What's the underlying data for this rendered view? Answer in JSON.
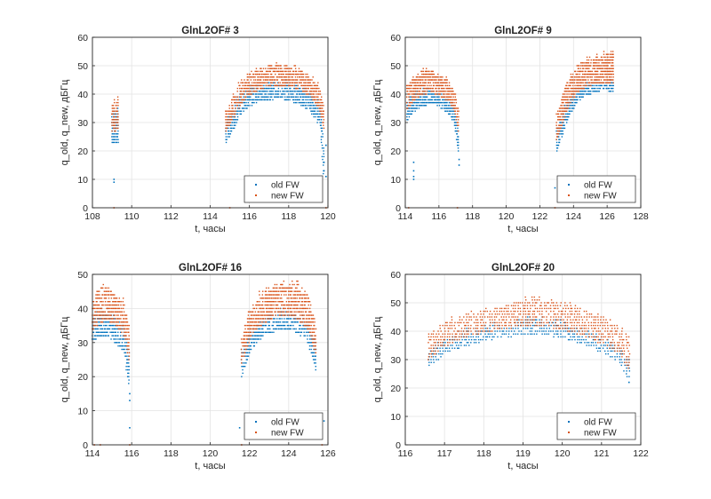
{
  "chart_data": [
    {
      "type": "scatter",
      "title": "GlnL2OF# 3",
      "xlabel": "t, часы",
      "ylabel": "q_old, q_new, дБГц",
      "xlim": [
        108,
        120
      ],
      "ylim": [
        0,
        60
      ],
      "xticks": [
        "108",
        "110",
        "112",
        "114",
        "116",
        "118",
        "120"
      ],
      "yticks": [
        "0",
        "10",
        "20",
        "30",
        "40",
        "50",
        "60"
      ],
      "grid": true,
      "legend": {
        "position": "bottom-right",
        "entries": [
          "old FW",
          "new FW"
        ]
      },
      "series": [
        {
          "name": "old FW",
          "color": "#0072BD",
          "segments": [
            {
              "x": [
                109.0,
                109.3
              ],
              "low": [
                23,
                23
              ],
              "high": [
                33,
                34
              ]
            },
            {
              "x": [
                114.8,
                115.2,
                115.5,
                116.0,
                116.5,
                117.0,
                117.5,
                118.0,
                118.5,
                119.0,
                119.3,
                119.6,
                119.8
              ],
              "low": [
                23,
                28,
                33,
                36,
                38,
                38,
                39,
                38,
                37,
                35,
                32,
                28,
                10
              ],
              "high": [
                30,
                36,
                40,
                42,
                43,
                44,
                44,
                44,
                43,
                41,
                39,
                36,
                22
              ]
            }
          ],
          "outliers": [
            [
              109.1,
              9
            ],
            [
              109.1,
              10
            ],
            [
              119.8,
              13
            ],
            [
              119.8,
              16
            ],
            [
              119.9,
              22
            ],
            [
              119.9,
              11
            ]
          ]
        },
        {
          "name": "new FW",
          "color": "#D95319",
          "segments": [
            {
              "x": [
                109.0,
                109.3
              ],
              "low": [
                27,
                27
              ],
              "high": [
                37,
                38
              ]
            },
            {
              "x": [
                114.8,
                115.2,
                115.5,
                116.0,
                116.5,
                117.0,
                117.5,
                118.0,
                118.5,
                119.0,
                119.3,
                119.6,
                119.8
              ],
              "low": [
                27,
                32,
                36,
                40,
                42,
                43,
                43,
                43,
                42,
                40,
                38,
                34,
                26
              ],
              "high": [
                33,
                40,
                44,
                47,
                49,
                50,
                51,
                50,
                49,
                47,
                45,
                42,
                35
              ]
            }
          ],
          "outliers": [
            [
              109.1,
              0
            ],
            [
              115.0,
              0
            ],
            [
              119.9,
              0
            ]
          ]
        }
      ]
    },
    {
      "type": "scatter",
      "title": "GlnL2OF# 9",
      "xlabel": "t, часы",
      "ylabel": "q_old, q_new, дБГц",
      "xlim": [
        114,
        128
      ],
      "ylim": [
        0,
        60
      ],
      "xticks": [
        "114",
        "116",
        "118",
        "120",
        "122",
        "124",
        "126",
        "128"
      ],
      "yticks": [
        "0",
        "10",
        "20",
        "30",
        "40",
        "50",
        "60"
      ],
      "grid": true,
      "legend": {
        "position": "bottom-right",
        "entries": [
          "old FW",
          "new FW"
        ]
      },
      "series": [
        {
          "name": "old FW",
          "color": "#0072BD",
          "segments": [
            {
              "x": [
                114.1,
                114.5,
                115.0,
                115.5,
                116.0,
                116.5,
                116.9,
                117.2
              ],
              "low": [
                31,
                34,
                36,
                37,
                36,
                34,
                30,
                18
              ],
              "high": [
                37,
                40,
                41,
                41,
                40,
                39,
                36,
                26
              ]
            },
            {
              "x": [
                123.0,
                123.4,
                123.8,
                124.3,
                124.8,
                125.3,
                125.8,
                126.4
              ],
              "low": [
                20,
                27,
                33,
                38,
                40,
                41,
                42,
                41
              ],
              "high": [
                28,
                34,
                39,
                42,
                43,
                44,
                44,
                44
              ]
            }
          ],
          "outliers": [
            [
              114.5,
              10
            ],
            [
              114.5,
              11
            ],
            [
              114.5,
              13
            ],
            [
              114.5,
              16
            ],
            [
              117.2,
              15
            ],
            [
              117.2,
              17
            ],
            [
              122.9,
              7
            ]
          ]
        },
        {
          "name": "new FW",
          "color": "#D95319",
          "segments": [
            {
              "x": [
                114.1,
                114.5,
                115.0,
                115.5,
                116.0,
                116.5,
                116.9,
                117.2
              ],
              "low": [
                35,
                38,
                40,
                41,
                40,
                38,
                35,
                26
              ],
              "high": [
                43,
                46,
                48,
                49,
                47,
                45,
                42,
                33
              ]
            },
            {
              "x": [
                123.0,
                123.4,
                123.8,
                124.3,
                124.8,
                125.3,
                125.8,
                126.4
              ],
              "low": [
                24,
                31,
                37,
                41,
                43,
                44,
                44,
                44
              ],
              "high": [
                32,
                40,
                46,
                50,
                52,
                53,
                54,
                54
              ]
            }
          ],
          "outliers": [
            [
              114.2,
              0
            ],
            [
              117.1,
              0
            ],
            [
              122.9,
              0
            ]
          ]
        }
      ]
    },
    {
      "type": "scatter",
      "title": "GlnL2OF# 16",
      "xlabel": "t, часы",
      "ylabel": "q_old, q_new, дБГц",
      "xlim": [
        114,
        126
      ],
      "ylim": [
        0,
        50
      ],
      "xticks": [
        "114",
        "116",
        "118",
        "120",
        "122",
        "124",
        "126"
      ],
      "yticks": [
        "0",
        "10",
        "20",
        "30",
        "40",
        "50"
      ],
      "grid": true,
      "legend": {
        "position": "bottom-right",
        "entries": [
          "old FW",
          "new FW"
        ]
      },
      "series": [
        {
          "name": "old FW",
          "color": "#0072BD",
          "segments": [
            {
              "x": [
                114.0,
                114.4,
                114.8,
                115.2,
                115.6,
                115.9
              ],
              "low": [
                31,
                32,
                32,
                30,
                28,
                15
              ],
              "high": [
                37,
                39,
                39,
                37,
                35,
                26
              ]
            },
            {
              "x": [
                121.6,
                122.0,
                122.5,
                123.0,
                123.5,
                124.0,
                124.5,
                125.0,
                125.4
              ],
              "low": [
                20,
                27,
                31,
                33,
                34,
                34,
                33,
                30,
                22
              ],
              "high": [
                27,
                33,
                36,
                38,
                39,
                39,
                38,
                36,
                30
              ]
            }
          ],
          "outliers": [
            [
              115.9,
              5
            ],
            [
              115.9,
              13
            ],
            [
              115.9,
              15
            ],
            [
              121.5,
              5
            ],
            [
              125.8,
              7
            ]
          ]
        },
        {
          "name": "new FW",
          "color": "#D95319",
          "segments": [
            {
              "x": [
                114.0,
                114.4,
                114.8,
                115.2,
                115.6,
                115.9
              ],
              "low": [
                34,
                36,
                37,
                35,
                33,
                24
              ],
              "high": [
                43,
                46,
                47,
                44,
                42,
                34
              ]
            },
            {
              "x": [
                121.6,
                122.0,
                122.5,
                123.0,
                123.5,
                124.0,
                124.5,
                125.0,
                125.4
              ],
              "low": [
                24,
                31,
                35,
                37,
                38,
                38,
                37,
                34,
                27
              ],
              "high": [
                31,
                39,
                44,
                46,
                47,
                48,
                47,
                44,
                36
              ]
            }
          ],
          "outliers": [
            [
              114.1,
              0
            ],
            [
              114.4,
              0
            ],
            [
              115.9,
              0
            ],
            [
              121.6,
              0
            ],
            [
              125.7,
              0
            ]
          ]
        }
      ]
    },
    {
      "type": "scatter",
      "title": "GlnL2OF# 20",
      "xlabel": "t, часы",
      "ylabel": "q_old, q_new, дБГц",
      "xlim": [
        116,
        122
      ],
      "ylim": [
        0,
        60
      ],
      "xticks": [
        "116",
        "117",
        "118",
        "119",
        "120",
        "121",
        "122"
      ],
      "yticks": [
        "0",
        "10",
        "20",
        "30",
        "40",
        "50",
        "60"
      ],
      "grid": true,
      "legend": {
        "position": "bottom-right",
        "entries": [
          "old FW",
          "new FW"
        ]
      },
      "series": [
        {
          "name": "old FW",
          "color": "#0072BD",
          "segments": [
            {
              "x": [
                116.6,
                117.0,
                117.5,
                118.0,
                118.5,
                119.0,
                119.5,
                120.0,
                120.5,
                121.0,
                121.4,
                121.7
              ],
              "low": [
                28,
                32,
                35,
                37,
                38,
                39,
                39,
                38,
                36,
                33,
                30,
                23
              ],
              "high": [
                33,
                37,
                40,
                42,
                43,
                44,
                44,
                43,
                41,
                38,
                35,
                31
              ]
            }
          ],
          "outliers": [
            [
              121.7,
              22
            ]
          ]
        },
        {
          "name": "new FW",
          "color": "#D95319",
          "segments": [
            {
              "x": [
                116.6,
                117.0,
                117.5,
                118.0,
                118.5,
                119.0,
                119.5,
                120.0,
                120.5,
                121.0,
                121.4,
                121.7
              ],
              "low": [
                30,
                35,
                38,
                40,
                41,
                42,
                42,
                41,
                39,
                36,
                33,
                27
              ],
              "high": [
                39,
                43,
                46,
                48,
                49,
                51,
                51,
                50,
                48,
                45,
                42,
                38
              ]
            }
          ],
          "outliers": []
        }
      ]
    }
  ]
}
